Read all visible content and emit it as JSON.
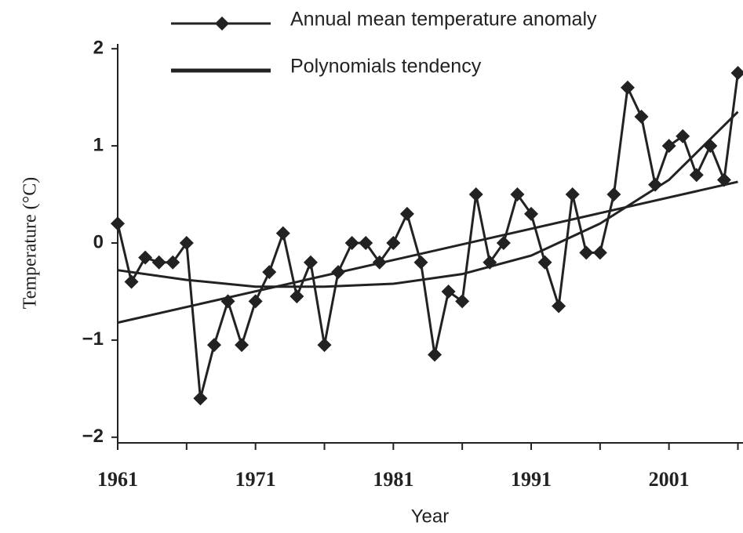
{
  "chart_data": {
    "type": "line",
    "x_label": "Year",
    "y_label": "Temperature (°C)",
    "x": [
      1961,
      1962,
      1963,
      1964,
      1965,
      1966,
      1967,
      1968,
      1969,
      1970,
      1971,
      1972,
      1973,
      1974,
      1975,
      1976,
      1977,
      1978,
      1979,
      1980,
      1981,
      1982,
      1983,
      1984,
      1985,
      1986,
      1987,
      1988,
      1989,
      1990,
      1991,
      1992,
      1993,
      1994,
      1995,
      1996,
      1997,
      1998,
      1999,
      2000,
      2001,
      2002,
      2003,
      2004,
      2005,
      2006
    ],
    "series": [
      {
        "name": "Annual mean temperature anomaly",
        "color": "#222222",
        "marker": "diamond",
        "values": [
          0.2,
          -0.4,
          -0.15,
          -0.2,
          -0.2,
          0.0,
          -1.6,
          -1.05,
          -0.6,
          -1.05,
          -0.6,
          -0.3,
          0.1,
          -0.55,
          -0.2,
          -1.05,
          -0.3,
          0.0,
          0.0,
          -0.2,
          0.0,
          0.3,
          -0.2,
          -1.15,
          -0.5,
          -0.6,
          0.5,
          -0.2,
          0.0,
          0.5,
          0.3,
          -0.2,
          -0.65,
          0.5,
          -0.1,
          -0.1,
          0.5,
          1.6,
          1.3,
          0.6,
          1.0,
          1.1,
          0.7,
          1.0,
          0.65,
          1.75
        ]
      },
      {
        "name": "Polynomials tendency",
        "color": "#222222",
        "marker": "none",
        "x": [
          1961,
          1966,
          1971,
          1976,
          1981,
          1986,
          1991,
          1996,
          2001,
          2006
        ],
        "values": [
          -0.28,
          -0.38,
          -0.45,
          -0.45,
          -0.42,
          -0.32,
          -0.13,
          0.2,
          0.65,
          1.35
        ]
      },
      {
        "name": null,
        "color": "#222222",
        "marker": "none",
        "x": [
          1961,
          2006
        ],
        "values": [
          -0.82,
          0.63
        ]
      }
    ],
    "xlim": [
      1961,
      2006.2
    ],
    "ylim": [
      -2.05,
      2.05
    ],
    "xticks": [
      1961,
      1971,
      1981,
      1991,
      2001
    ],
    "xminor": [
      1966,
      1976,
      1986,
      1996,
      2006
    ],
    "yticks": [
      {
        "value": -2,
        "label": "−2"
      },
      {
        "value": -1,
        "label": "−1"
      },
      0,
      1,
      2
    ]
  }
}
